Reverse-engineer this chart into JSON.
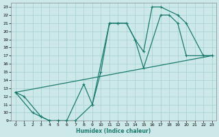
{
  "xlabel": "Humidex (Indice chaleur)",
  "xlim": [
    -0.5,
    23.5
  ],
  "ylim": [
    9,
    23.5
  ],
  "xticks": [
    0,
    1,
    2,
    3,
    4,
    5,
    6,
    7,
    8,
    9,
    10,
    11,
    12,
    13,
    14,
    15,
    16,
    17,
    18,
    19,
    20,
    21,
    22,
    23
  ],
  "yticks": [
    9,
    10,
    11,
    12,
    13,
    14,
    15,
    16,
    17,
    18,
    19,
    20,
    21,
    22,
    23
  ],
  "bg_color": "#cce8e8",
  "grid_color": "#aad4d4",
  "line_color": "#1a7a6e",
  "line1_x": [
    0,
    1,
    3,
    4,
    5,
    6,
    7,
    9,
    11,
    12,
    13,
    14,
    15,
    16,
    17,
    19,
    20,
    22,
    23
  ],
  "line1_y": [
    12.5,
    12,
    9.5,
    9,
    9,
    9,
    9,
    11,
    21,
    21,
    21,
    19,
    17.5,
    23,
    23,
    22,
    21,
    17,
    17
  ],
  "line2_x": [
    0,
    2,
    3,
    4,
    5,
    6,
    8,
    9,
    10,
    11,
    12,
    13,
    14,
    15,
    17,
    18,
    19,
    20,
    22,
    23
  ],
  "line2_y": [
    12.5,
    10,
    9.5,
    9,
    9,
    9,
    13.5,
    11,
    15,
    21,
    21,
    21,
    19,
    15.5,
    22,
    22,
    21,
    17,
    17,
    17
  ],
  "line3_x": [
    0,
    23
  ],
  "line3_y": [
    12.5,
    17
  ]
}
